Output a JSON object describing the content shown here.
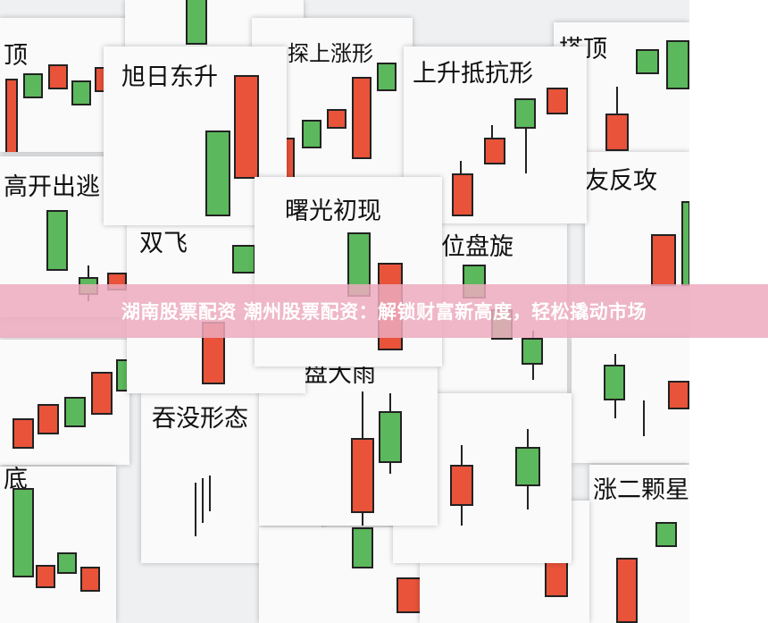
{
  "labels": {
    "top_left": "顶",
    "xuri": "旭日东升",
    "xiatan": "探上涨形",
    "shangsheng": "上升抵抗形",
    "dading": "搭顶",
    "gaokai": "高开出逃",
    "shuangfei": "双飞",
    "shuguang": "曙光初现",
    "panxuan": "位盘旋",
    "fangong": "友反攻",
    "dayu": "盘大雨",
    "tunmo": "吞没形态",
    "di": "底",
    "zhang": "涨二颗星"
  },
  "banner": {
    "title": "湖南股票配资 潮州股票配资：解锁财富新高度，轻松撬动市场"
  },
  "colors": {
    "bullish": "#e8533a",
    "bearish": "#5cb85c",
    "banner": "#ecaabe"
  }
}
